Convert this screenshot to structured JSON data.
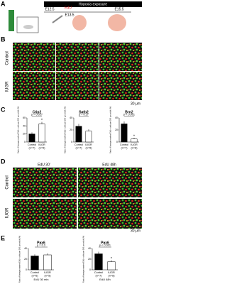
{
  "figure": {
    "panels": [
      "A",
      "B",
      "C",
      "D",
      "E"
    ],
    "a": {
      "title": "Hypoxia exposure",
      "timeline": [
        "E12.5",
        "E13.5",
        "E15.5"
      ],
      "injection": "EdU"
    },
    "b": {
      "rows": [
        "Control",
        "IUGR"
      ],
      "scale": "30 μm"
    },
    "d": {
      "columns": [
        "EdU 30'",
        "EdU 48h"
      ],
      "rows": [
        "Control",
        "IUGR"
      ],
      "scale": "30 μm"
    }
  },
  "chart_data": [
    {
      "type": "bar",
      "title": "Ctip2",
      "ylabel": "Ratio of lineage marker/ EdU+ cells per 200 μm width (%)",
      "categories": [
        "Control",
        "IUGR"
      ],
      "n_labels": [
        "(n=7)",
        "(n=5)"
      ],
      "values": [
        20,
        45
      ],
      "errors": [
        4,
        5
      ],
      "colors": [
        "#000000",
        "#ffffff"
      ],
      "ylim": [
        0,
        60
      ],
      "yticks": [
        0,
        20,
        40,
        60
      ],
      "annotation": "p = 0.027",
      "star": "*"
    },
    {
      "type": "bar",
      "title": "Satb2",
      "ylabel": "Ratio of lineage marker/ EdU+ cells per 200 μm width (%)",
      "categories": [
        "Control",
        "IUGR"
      ],
      "n_labels": [
        "(n=7)",
        "(n=5)"
      ],
      "values": [
        26,
        18
      ],
      "errors": [
        4,
        3
      ],
      "colors": [
        "#000000",
        "#ffffff"
      ],
      "ylim": [
        0,
        40
      ],
      "yticks": [
        0,
        20,
        40
      ],
      "annotation": "p = 0.17"
    },
    {
      "type": "bar",
      "title": "Brn2",
      "ylabel": "Ratio of lineage marker/ EdU+ cells per 200 μm width (%)",
      "categories": [
        "Control",
        "IUGR"
      ],
      "n_labels": [
        "(n=7)",
        "(n=8)"
      ],
      "values": [
        30,
        5
      ],
      "errors": [
        4,
        2
      ],
      "colors": [
        "#000000",
        "#ffffff"
      ],
      "ylim": [
        0,
        40
      ],
      "yticks": [
        0,
        20,
        40
      ],
      "annotation": "p < 0.001",
      "star": "*"
    },
    {
      "type": "bar",
      "title": "Pax6",
      "ylabel": "Ratio of lineage marker/ EdU+ cells per 200 μm width (%)",
      "categories": [
        "Control",
        "IUGR"
      ],
      "n_labels": [
        "(n=6)",
        "(n=5)"
      ],
      "values": [
        26,
        28
      ],
      "errors": [
        3,
        3
      ],
      "colors": [
        "#000000",
        "#ffffff"
      ],
      "ylim": [
        0,
        40
      ],
      "yticks": [
        0,
        20,
        40
      ],
      "annotation": "p = 0.3",
      "xlabel": "EdU 30 min"
    },
    {
      "type": "bar",
      "title": "Pax6",
      "ylabel": "Ratio of lineage marker/ EdU+ cells per 200 μm width (%)",
      "categories": [
        "Control",
        "IUGR"
      ],
      "n_labels": [
        "(n=7)",
        "(n=8)"
      ],
      "values": [
        30,
        15
      ],
      "errors": [
        4,
        3
      ],
      "colors": [
        "#000000",
        "#ffffff"
      ],
      "ylim": [
        0,
        40
      ],
      "yticks": [
        0,
        20,
        40
      ],
      "annotation": "p < 0.001",
      "star": "*",
      "xlabel": "EdU 48h"
    }
  ]
}
